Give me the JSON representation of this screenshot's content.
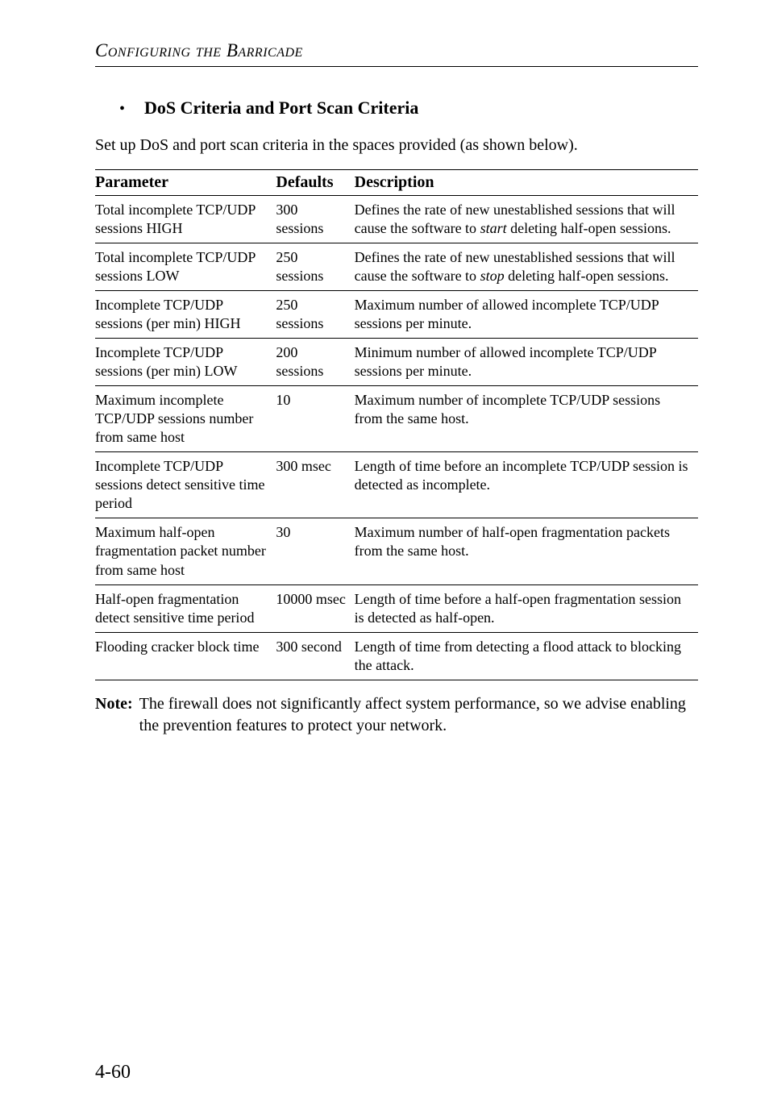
{
  "running_head": "Configuring the Barricade",
  "section": {
    "bullet": "•",
    "title": "DoS Criteria and Port Scan Criteria",
    "intro": "Set up DoS and port scan criteria in the spaces provided (as shown below)."
  },
  "table": {
    "headers": {
      "parameter": "Parameter",
      "defaults": "Defaults",
      "description": "Description"
    },
    "rows": [
      {
        "parameter": "Total incomplete TCP/UDP sessions HIGH",
        "defaults": "300 sessions",
        "description_pre": "Defines the rate of new unestablished sessions that will cause the software to ",
        "description_em": "start",
        "description_post": " deleting half-open sessions."
      },
      {
        "parameter": "Total incomplete TCP/UDP sessions LOW",
        "defaults": "250 sessions",
        "description_pre": "Defines the rate of new unestablished sessions that will cause the software to ",
        "description_em": "stop",
        "description_post": " deleting half-open sessions."
      },
      {
        "parameter": "Incomplete TCP/UDP sessions (per min) HIGH",
        "defaults": "250 sessions",
        "description_pre": "Maximum number of allowed incomplete TCP/UDP sessions per minute.",
        "description_em": "",
        "description_post": ""
      },
      {
        "parameter": "Incomplete TCP/UDP sessions (per min) LOW",
        "defaults": "200 sessions",
        "description_pre": "Minimum number of allowed incomplete TCP/UDP sessions per minute.",
        "description_em": "",
        "description_post": ""
      },
      {
        "parameter": "Maximum incomplete TCP/UDP sessions number from same host",
        "defaults": "10",
        "description_pre": "Maximum number of incomplete TCP/UDP sessions from the same host.",
        "description_em": "",
        "description_post": ""
      },
      {
        "parameter": "Incomplete TCP/UDP sessions detect sensitive time period",
        "defaults": "300 msec",
        "description_pre": "Length of time before an incomplete TCP/UDP session is detected as incomplete.",
        "description_em": "",
        "description_post": ""
      },
      {
        "parameter": "Maximum half-open fragmentation packet number from same host",
        "defaults": "30",
        "description_pre": "Maximum number of half-open fragmentation packets from the same host.",
        "description_em": "",
        "description_post": ""
      },
      {
        "parameter": "Half-open fragmentation detect sensitive time period",
        "defaults": "10000 msec",
        "description_pre": "Length of time before a half-open fragmentation session is detected as half-open.",
        "description_em": "",
        "description_post": ""
      },
      {
        "parameter": "Flooding cracker block time",
        "defaults": "300 second",
        "description_pre": "Length of time from detecting a flood attack to blocking the attack.",
        "description_em": "",
        "description_post": ""
      }
    ]
  },
  "note": {
    "label": "Note:",
    "text": "The firewall does not significantly affect system performance, so we advise enabling the prevention features to protect your network."
  },
  "page_number": "4-60"
}
